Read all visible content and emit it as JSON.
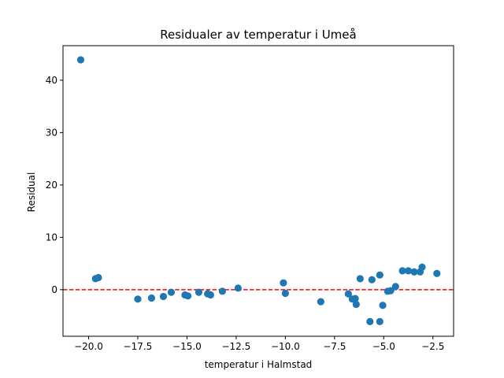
{
  "chart_data": {
    "type": "scatter",
    "title": "Residualer av temperatur i Umeå",
    "xlabel": "temperatur i Halmstad",
    "ylabel": "Residual",
    "xlim": [
      -21.3,
      -1.45
    ],
    "ylim": [
      -8.9,
      46.6
    ],
    "x_ticks": [
      -20.0,
      -17.5,
      -15.0,
      -12.5,
      -10.0,
      -7.5,
      -5.0,
      -2.5
    ],
    "x_tick_labels": [
      "−20.0",
      "−17.5",
      "−15.0",
      "−12.5",
      "−10.0",
      "−7.5",
      "−5.0",
      "−2.5"
    ],
    "y_ticks": [
      0,
      10,
      20,
      30,
      40
    ],
    "y_tick_labels": [
      "0",
      "10",
      "20",
      "30",
      "40"
    ],
    "grid": false,
    "reference_line": {
      "y": 0,
      "style": "dashed",
      "color": "#ff0000"
    },
    "series": [
      {
        "color": "#1f77b4",
        "points": [
          {
            "x": -20.4,
            "y": 43.9
          },
          {
            "x": -19.65,
            "y": 2.1
          },
          {
            "x": -19.5,
            "y": 2.3
          },
          {
            "x": -17.5,
            "y": -1.8
          },
          {
            "x": -16.8,
            "y": -1.6
          },
          {
            "x": -16.2,
            "y": -1.3
          },
          {
            "x": -15.8,
            "y": -0.5
          },
          {
            "x": -15.1,
            "y": -1.0
          },
          {
            "x": -14.95,
            "y": -1.2
          },
          {
            "x": -14.4,
            "y": -0.5
          },
          {
            "x": -13.95,
            "y": -0.8
          },
          {
            "x": -13.8,
            "y": -1.0
          },
          {
            "x": -13.2,
            "y": -0.3
          },
          {
            "x": -12.4,
            "y": 0.3
          },
          {
            "x": -10.1,
            "y": 1.3
          },
          {
            "x": -10.0,
            "y": -0.7
          },
          {
            "x": -8.2,
            "y": -2.3
          },
          {
            "x": -6.8,
            "y": -0.8
          },
          {
            "x": -6.6,
            "y": -1.8
          },
          {
            "x": -6.45,
            "y": -1.7
          },
          {
            "x": -6.4,
            "y": -2.8
          },
          {
            "x": -6.2,
            "y": 2.1
          },
          {
            "x": -5.7,
            "y": -6.1
          },
          {
            "x": -5.6,
            "y": 1.9
          },
          {
            "x": -5.2,
            "y": 2.8
          },
          {
            "x": -5.2,
            "y": -6.1
          },
          {
            "x": -5.05,
            "y": -3.0
          },
          {
            "x": -4.8,
            "y": -0.3
          },
          {
            "x": -4.65,
            "y": -0.2
          },
          {
            "x": -4.4,
            "y": 0.6
          },
          {
            "x": -4.05,
            "y": 3.6
          },
          {
            "x": -3.75,
            "y": 3.6
          },
          {
            "x": -3.45,
            "y": 3.4
          },
          {
            "x": -3.15,
            "y": 3.4
          },
          {
            "x": -3.05,
            "y": 4.3
          },
          {
            "x": -2.3,
            "y": 3.1
          }
        ]
      }
    ]
  }
}
